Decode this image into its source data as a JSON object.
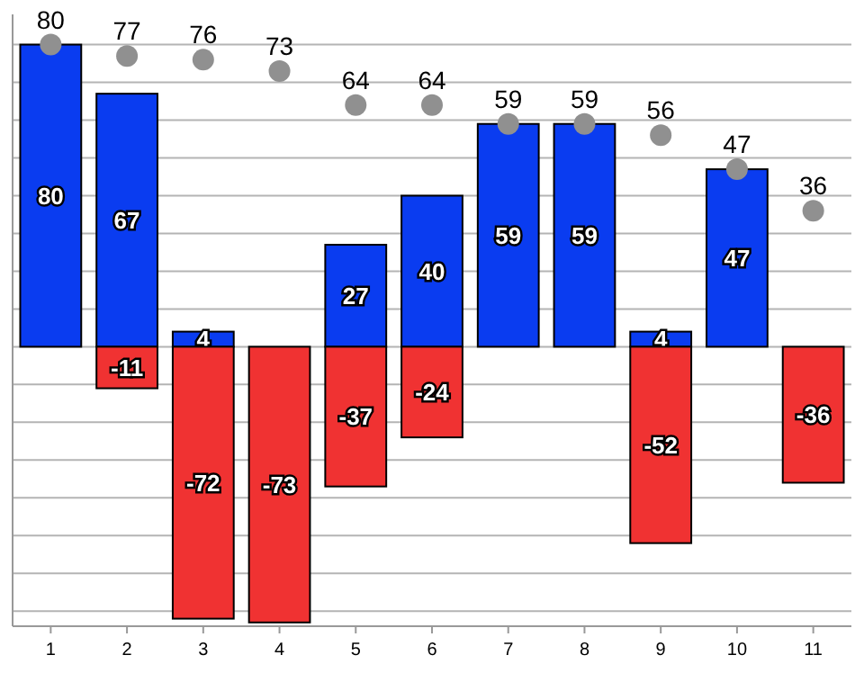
{
  "chart_data": {
    "type": "bar",
    "stacked": true,
    "categories": [
      "1",
      "2",
      "3",
      "4",
      "5",
      "6",
      "7",
      "8",
      "9",
      "10",
      "11"
    ],
    "ylim": [
      -74,
      88
    ],
    "yticks": [
      {
        "value": -70,
        "label": null
      },
      {
        "value": -60,
        "label": null
      },
      {
        "value": -50,
        "label": null
      },
      {
        "value": -40,
        "label": null
      },
      {
        "value": -30,
        "label": null
      },
      {
        "value": -20,
        "label": null
      },
      {
        "value": -10,
        "label": null
      },
      {
        "value": 0,
        "label": null
      },
      {
        "value": 10,
        "label": null
      },
      {
        "value": 20,
        "label": null
      },
      {
        "value": 30,
        "label": null
      },
      {
        "value": 40,
        "label": null
      },
      {
        "value": 50,
        "label": null
      },
      {
        "value": 60,
        "label": null
      },
      {
        "value": 70,
        "label": null
      },
      {
        "value": 80,
        "label": null
      }
    ],
    "tick_labels": "x",
    "grid": "y",
    "data_labels": true,
    "series": [
      {
        "color": "#0a3cf0",
        "values": [
          80,
          67,
          4,
          null,
          27,
          40,
          59,
          59,
          4,
          47,
          null
        ]
      },
      {
        "color": "#f03232",
        "values": [
          null,
          -11,
          -72,
          -73,
          -37,
          -24,
          null,
          null,
          -52,
          null,
          -36
        ]
      },
      {
        "type": "scatter",
        "color": "#909090",
        "marker": "circle",
        "x": [
          "1",
          "2",
          "3",
          "4",
          "5",
          "6",
          "7",
          "8",
          "9",
          "10",
          "11"
        ],
        "values": [
          80,
          77,
          76,
          73,
          64,
          64,
          59,
          59,
          56,
          47,
          36
        ]
      }
    ]
  }
}
